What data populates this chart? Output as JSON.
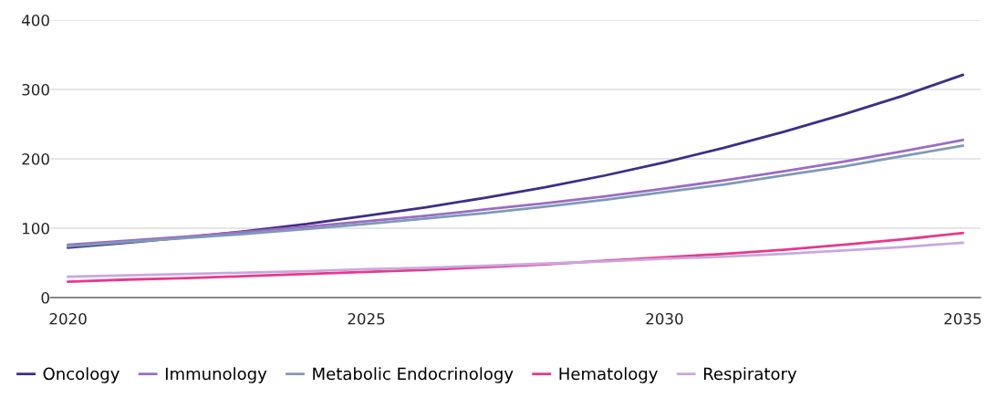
{
  "chart_data": {
    "type": "line",
    "x": [
      2020,
      2021,
      2022,
      2023,
      2024,
      2025,
      2026,
      2027,
      2028,
      2029,
      2030,
      2031,
      2032,
      2033,
      2034,
      2035
    ],
    "series": [
      {
        "name": "Oncology",
        "color": "#3f2d85",
        "values": [
          72,
          79,
          87,
          96,
          106,
          118,
          130,
          144,
          159,
          176,
          195,
          216,
          239,
          264,
          291,
          321
        ]
      },
      {
        "name": "Immunology",
        "color": "#9b6cc4",
        "values": [
          76,
          82,
          88,
          95,
          102,
          110,
          118,
          127,
          136,
          146,
          157,
          169,
          182,
          196,
          211,
          227
        ]
      },
      {
        "name": "Metabolic Endocrinology",
        "color": "#7f99b8",
        "values": [
          74,
          80,
          86,
          92,
          99,
          106,
          114,
          122,
          131,
          141,
          152,
          163,
          176,
          189,
          204,
          219
        ]
      },
      {
        "name": "Hematology",
        "color": "#e8388a",
        "values": [
          23,
          26,
          28,
          31,
          34,
          37,
          40,
          44,
          48,
          53,
          58,
          63,
          69,
          76,
          84,
          93
        ]
      },
      {
        "name": "Respiratory",
        "color": "#c9a8de",
        "values": [
          30,
          32,
          34,
          36,
          38,
          41,
          43,
          46,
          49,
          52,
          56,
          59,
          63,
          68,
          73,
          79
        ]
      }
    ],
    "xlim": [
      2019.7,
      2035.3
    ],
    "xticks": [
      2020,
      2025,
      2030,
      2035
    ],
    "ylim": [
      0,
      400
    ],
    "yticks": [
      0,
      100,
      200,
      300,
      400
    ],
    "grid": "y",
    "legend": "bottom",
    "marker": "none",
    "line_style": "solid"
  }
}
